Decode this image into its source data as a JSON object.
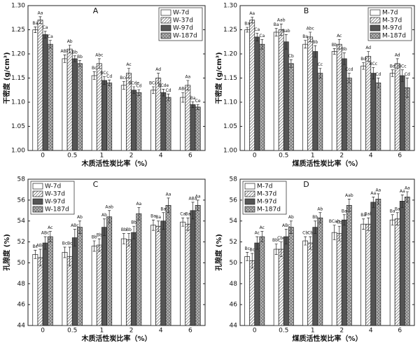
{
  "chart_data": [
    {
      "type": "bar",
      "title": "A",
      "x_label": "木质活性炭比率（%）",
      "y_label": "干密度 (g/cm³)",
      "categories": [
        "0",
        "0.5",
        "1",
        "2",
        "4",
        "6"
      ],
      "legend": "upper right",
      "ylim": [
        1.0,
        1.3
      ],
      "yticks": [
        {
          "value": 1.0,
          "label": "1.00"
        },
        1.05,
        {
          "value": 1.1,
          "label": "1.10"
        },
        1.15,
        {
          "value": 1.2,
          "label": "1.20"
        },
        1.25,
        {
          "value": 1.3,
          "label": "1.30"
        }
      ],
      "series": [
        {
          "name": "W-7d",
          "color": "#ffffff",
          "pattern": "none",
          "values": [
            1.25,
            1.19,
            1.155,
            1.135,
            1.125,
            1.11
          ],
          "errors": [
            0.006,
            0.008,
            0.008,
            0.008,
            0.007,
            0.01
          ],
          "annotations": [
            "Ba",
            "ABb",
            "Bc",
            "Bcd",
            "BCd",
            "ABd"
          ]
        },
        {
          "name": "W-37d",
          "color": "#ffffff",
          "pattern": "hatch",
          "values": [
            1.27,
            1.21,
            1.18,
            1.16,
            1.15,
            1.135
          ],
          "errors": [
            0.007,
            0.008,
            0.01,
            0.01,
            0.01,
            0.01
          ],
          "annotations": [
            "Aa",
            "Ab",
            "Abc",
            "Ac",
            "Ad",
            "Aa"
          ]
        },
        {
          "name": "W-97d",
          "color": "#555555",
          "pattern": "solid",
          "values": [
            1.24,
            1.19,
            1.145,
            1.125,
            1.12,
            1.095
          ],
          "errors": [
            0.007,
            0.006,
            0.008,
            0.007,
            0.007,
            0.006
          ],
          "annotations": [
            "Ca",
            "Bb",
            "BCc",
            "BCde",
            "BCde",
            "Ba"
          ]
        },
        {
          "name": "W-187d",
          "color": "#ffffff",
          "pattern": "cross",
          "values": [
            1.22,
            1.18,
            1.14,
            1.12,
            1.11,
            1.09
          ],
          "errors": [
            0.008,
            0.006,
            0.006,
            0.006,
            0.007,
            0.005
          ],
          "annotations": [
            "Ca",
            "Bb",
            "Cd",
            "Cd",
            "Cd",
            "Ce"
          ]
        }
      ]
    },
    {
      "type": "bar",
      "title": "B",
      "x_label": "煤质活性炭比率（%）",
      "y_label": "干密度 (g/cm³)",
      "categories": [
        "0",
        "0.5",
        "1",
        "2",
        "4",
        "6"
      ],
      "legend": "upper right",
      "ylim": [
        1.0,
        1.3
      ],
      "yticks": [
        {
          "value": 1.0,
          "label": "1.00"
        },
        1.05,
        {
          "value": 1.1,
          "label": "1.10"
        },
        1.15,
        {
          "value": 1.2,
          "label": "1.20"
        },
        1.25,
        {
          "value": 1.3,
          "label": "1.30"
        }
      ],
      "series": [
        {
          "name": "M-7d",
          "color": "#ffffff",
          "pattern": "none",
          "values": [
            1.25,
            1.245,
            1.22,
            1.205,
            1.175,
            1.16
          ],
          "errors": [
            0.005,
            0.008,
            0.008,
            0.006,
            0.007,
            0.007
          ],
          "annotations": [
            "Ba",
            "Ba",
            "Ba",
            "Bb",
            "Bd",
            "Bd"
          ]
        },
        {
          "name": "M-37d",
          "color": "#ffffff",
          "pattern": "hatch",
          "values": [
            1.27,
            1.25,
            1.235,
            1.22,
            1.195,
            1.18
          ],
          "errors": [
            0.006,
            0.012,
            0.01,
            0.01,
            0.01,
            0.01
          ],
          "annotations": [
            "Aa",
            "Aab",
            "Abc",
            "Ac",
            "Ad",
            "Ad"
          ]
        },
        {
          "name": "M-97d",
          "color": "#555555",
          "pattern": "solid",
          "values": [
            1.235,
            1.225,
            1.205,
            1.19,
            1.16,
            1.155
          ],
          "errors": [
            0.008,
            0.015,
            0.012,
            0.012,
            0.012,
            0.012
          ],
          "annotations": [
            "Ca",
            "Bab",
            "Bb",
            "Bb",
            "BCc",
            "BCc"
          ]
        },
        {
          "name": "M-187d",
          "color": "#ffffff",
          "pattern": "cross",
          "values": [
            1.22,
            1.18,
            1.16,
            1.15,
            1.14,
            1.13
          ],
          "errors": [
            0.01,
            0.008,
            0.01,
            0.01,
            0.01,
            0.02
          ],
          "annotations": [
            "Ca",
            "Cb",
            "Cc",
            "Ccd",
            "Cd",
            "Cd"
          ]
        }
      ]
    },
    {
      "type": "bar",
      "title": "C",
      "x_label": "木质活性炭比率（%）",
      "y_label": "孔隙度 (%)",
      "categories": [
        "0",
        "0.5",
        "1",
        "2",
        "4",
        "6"
      ],
      "legend": "upper left",
      "ylim": [
        44,
        58
      ],
      "yticks": [
        44,
        46,
        48,
        50,
        52,
        54,
        56,
        58
      ],
      "series": [
        {
          "name": "W-7d",
          "color": "#ffffff",
          "pattern": "none",
          "values": [
            50.8,
            51.0,
            51.6,
            52.3,
            53.6,
            53.9
          ],
          "errors": [
            0.4,
            0.5,
            0.5,
            0.5,
            0.5,
            0.4
          ],
          "annotations": [
            "Bc",
            "Bc",
            "Bb",
            "Bb",
            "Ba",
            "Ca"
          ]
        },
        {
          "name": "W-37d",
          "color": "#ffffff",
          "pattern": "hatch",
          "values": [
            50.5,
            50.6,
            51.7,
            52.2,
            53.5,
            53.7
          ],
          "errors": [
            0.8,
            0.9,
            0.6,
            0.6,
            0.5,
            0.6
          ],
          "annotations": [
            "ABc",
            "Bc",
            "Bb",
            "Bb",
            "Ba",
            "Ba"
          ]
        },
        {
          "name": "W-97d",
          "color": "#555555",
          "pattern": "solid",
          "values": [
            51.9,
            52.4,
            53.4,
            52.9,
            54.0,
            55.0
          ],
          "errors": [
            0.6,
            0.8,
            0.8,
            0.6,
            0.8,
            0.8
          ],
          "annotations": [
            "ABc",
            "ABc",
            "Ab",
            "Bb",
            "Ba",
            "ABa"
          ]
        },
        {
          "name": "W-187d",
          "color": "#ffffff",
          "pattern": "cross",
          "values": [
            52.5,
            53.4,
            54.4,
            54.7,
            55.5,
            55.5
          ],
          "errors": [
            0.5,
            0.6,
            0.6,
            0.6,
            0.7,
            0.5
          ],
          "annotations": [
            "Ac",
            "Ab",
            "Aab",
            "Aa",
            "Aa",
            "Aa"
          ]
        }
      ]
    },
    {
      "type": "bar",
      "title": "D",
      "x_label": "煤质活性炭比率（%）",
      "y_label": "孔隙度 (%)",
      "categories": [
        "0",
        "0.5",
        "1",
        "2",
        "4",
        "6"
      ],
      "legend": "upper left",
      "ylim": [
        44,
        58
      ],
      "yticks": [
        44,
        46,
        48,
        50,
        52,
        54,
        56,
        58
      ],
      "series": [
        {
          "name": "M-7d",
          "color": "#ffffff",
          "pattern": "none",
          "values": [
            50.6,
            51.3,
            52.1,
            52.9,
            53.7,
            54.1
          ],
          "errors": [
            0.4,
            0.5,
            0.4,
            0.7,
            0.5,
            0.5
          ],
          "annotations": [
            "Bc",
            "Bbc",
            "Cb",
            "BCab",
            "Ba",
            "Ba"
          ]
        },
        {
          "name": "M-37d",
          "color": "#ffffff",
          "pattern": "hatch",
          "values": [
            50.2,
            51.3,
            51.9,
            52.8,
            53.7,
            54.2
          ],
          "errors": [
            0.7,
            0.7,
            0.6,
            0.7,
            0.6,
            0.6
          ],
          "annotations": [
            "Bc",
            "Cbc",
            "Cb",
            "Cb",
            "Bab",
            "Ba"
          ]
        },
        {
          "name": "M-97d",
          "color": "#555555",
          "pattern": "solid",
          "values": [
            51.9,
            52.5,
            53.4,
            54.1,
            55.8,
            55.9
          ],
          "errors": [
            0.6,
            0.7,
            0.6,
            0.5,
            0.5,
            0.6
          ],
          "annotations": [
            "Ac",
            "ABc",
            "Bb",
            "Ba",
            "Aa",
            "Aa"
          ]
        },
        {
          "name": "M-187d",
          "color": "#ffffff",
          "pattern": "cross",
          "values": [
            52.5,
            53.4,
            54.3,
            55.5,
            56.1,
            56.3
          ],
          "errors": [
            0.5,
            0.6,
            0.5,
            0.6,
            0.5,
            0.5
          ],
          "annotations": [
            "Ac",
            "Ab",
            "Ab",
            "Aab",
            "Aa",
            "Aa"
          ]
        }
      ]
    }
  ]
}
